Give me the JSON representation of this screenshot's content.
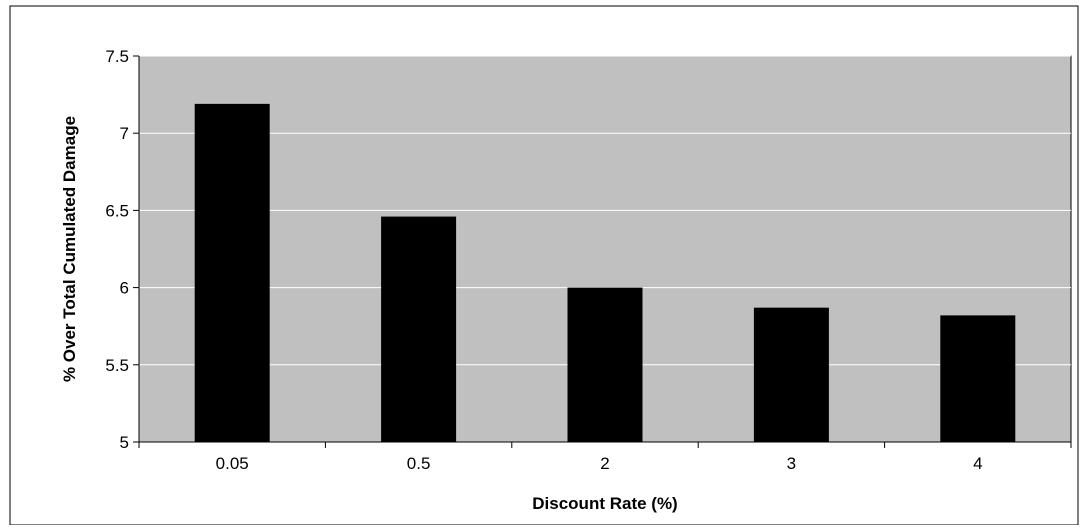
{
  "colors": {
    "plot_background": "#c0c0c0",
    "bar_fill": "#000000",
    "gridline": "#ffffff",
    "frame": "#000000",
    "page_background": "#ffffff"
  },
  "chart_data": {
    "type": "bar",
    "categories": [
      "0.05",
      "0.5",
      "2",
      "3",
      "4"
    ],
    "values": [
      7.19,
      6.46,
      6.0,
      5.87,
      5.82
    ],
    "xlabel": "Discount Rate (%)",
    "ylabel": "% Over Total Cumulated Damage",
    "ylim": [
      5,
      7.5
    ],
    "yticks": [
      5,
      5.5,
      6,
      6.5,
      7,
      7.5
    ],
    "ytick_labels": [
      "5",
      "5.5",
      "6",
      "6.5",
      "7",
      "7.5"
    ],
    "grid": true,
    "legend": "none"
  }
}
